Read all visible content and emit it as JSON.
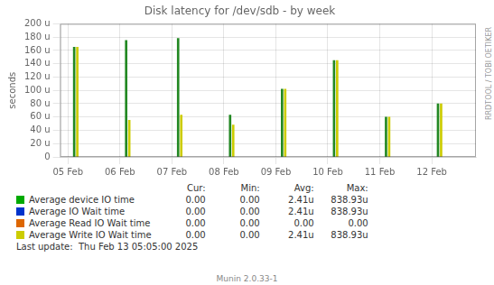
{
  "chart_data": {
    "type": "bar",
    "title": "Disk latency for /dev/sdb - by week",
    "ylabel": "seconds",
    "xlim": [
      -0.15,
      7.85
    ],
    "xticks": [
      {
        "value": 0,
        "label": "05 Feb"
      },
      {
        "value": 1,
        "label": "06 Feb"
      },
      {
        "value": 2,
        "label": "07 Feb"
      },
      {
        "value": 3,
        "label": "08 Feb"
      },
      {
        "value": 4,
        "label": "09 Feb"
      },
      {
        "value": 5,
        "label": "10 Feb"
      },
      {
        "value": 6,
        "label": "11 Feb"
      },
      {
        "value": 7,
        "label": "12 Feb"
      }
    ],
    "ylim": [
      0,
      200
    ],
    "yticks": [
      0,
      {
        "value": 20,
        "label": "20 u"
      },
      {
        "value": 40,
        "label": "40 u"
      },
      {
        "value": 60,
        "label": "60 u"
      },
      {
        "value": 80,
        "label": "80 u"
      },
      {
        "value": 100,
        "label": "100 u"
      },
      {
        "value": 120,
        "label": "120 u"
      },
      {
        "value": 140,
        "label": "140 u"
      },
      {
        "value": 160,
        "label": "160 u"
      },
      {
        "value": 180,
        "label": "180 u"
      },
      {
        "value": 200,
        "label": "200 u"
      }
    ],
    "grid": true,
    "series": [
      {
        "color": "#228822",
        "x": [
          0.12,
          1.12,
          2.12,
          3.12,
          4.12,
          5.12,
          6.12,
          7.12
        ],
        "values": [
          165,
          175,
          178,
          63,
          102,
          145,
          60,
          80
        ]
      },
      {
        "color": "#cccc00",
        "x": [
          0.18,
          1.18,
          2.18,
          3.18,
          4.18,
          5.18,
          6.18,
          7.18
        ],
        "values": [
          165,
          55,
          63,
          48,
          102,
          145,
          60,
          80
        ]
      }
    ],
    "legend_entries": [
      {
        "name": "Average device IO time",
        "color": "#00aa00"
      },
      {
        "name": "Average IO Wait time",
        "color": "#0033cc"
      },
      {
        "name": "Average Read IO Wait time",
        "color": "#dd6600"
      },
      {
        "name": "Average Write IO Wait time",
        "color": "#cccc00"
      }
    ],
    "table": {
      "headers": [
        "Cur:",
        "Min:",
        "Avg:",
        "Max:"
      ],
      "rows": [
        [
          "0.00",
          "0.00",
          "2.41u",
          "838.93u"
        ],
        [
          "0.00",
          "0.00",
          "2.41u",
          "838.93u"
        ],
        [
          "0.00",
          "0.00",
          "0.00",
          "0.00"
        ],
        [
          "0.00",
          "0.00",
          "2.41u",
          "838.93u"
        ]
      ]
    },
    "annotations": [
      "Last update:  Thu Feb 13 05:05:00 2025",
      "Munin 2.0.33-1",
      "RRDTOOL / TOBI OETIKER"
    ]
  }
}
